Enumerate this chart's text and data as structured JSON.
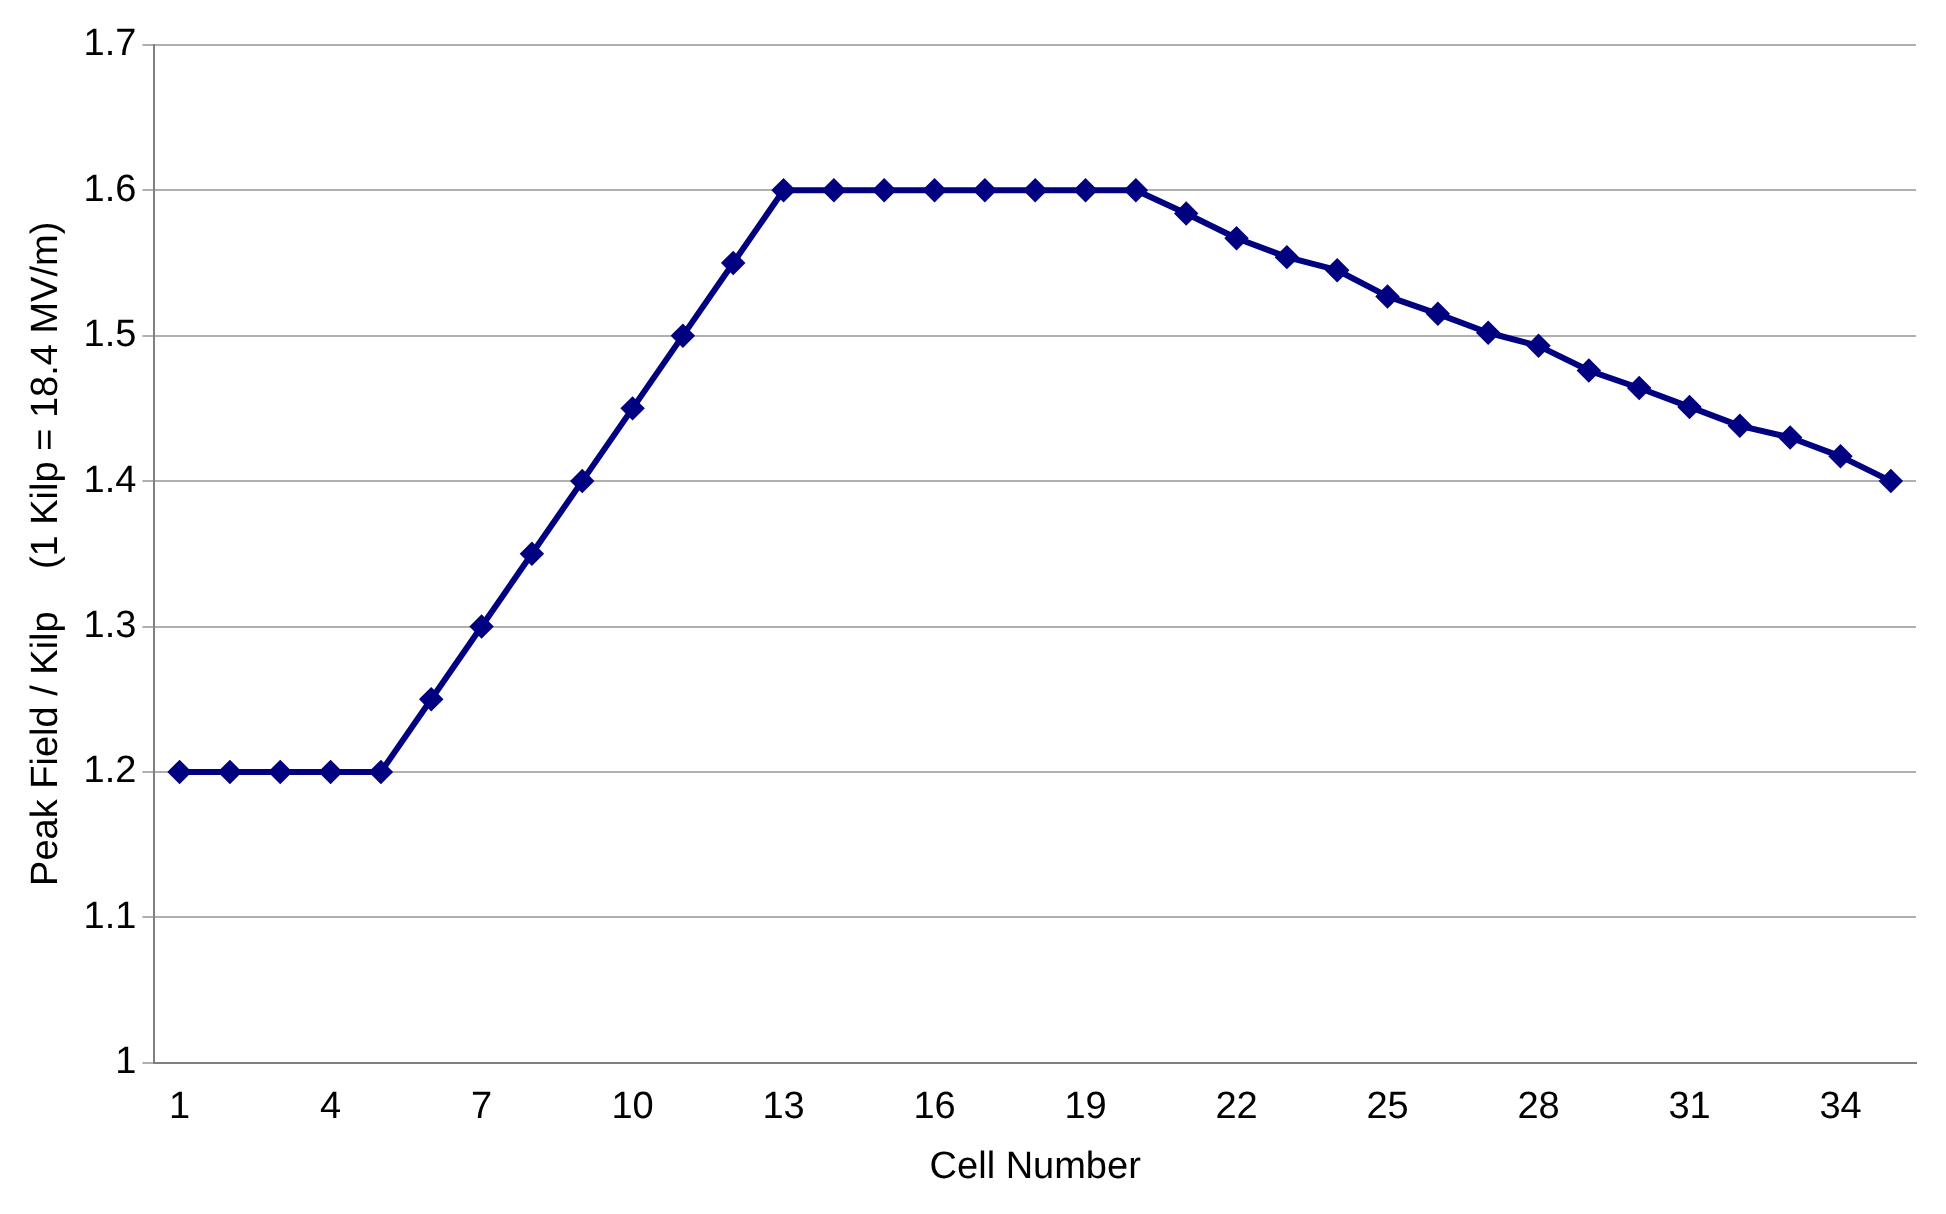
{
  "chart_data": {
    "type": "line",
    "xlabel": "Cell Number",
    "ylabel": "Peak Field / Kilp    (1 Kilp = 18.4 MV/m)",
    "categories": [
      "1",
      null,
      null,
      "4",
      null,
      null,
      "7",
      null,
      null,
      "10",
      null,
      null,
      "13",
      null,
      null,
      "16",
      null,
      null,
      "19",
      null,
      null,
      "22",
      null,
      null,
      "25",
      null,
      null,
      "28",
      null,
      null,
      "31",
      null,
      null,
      "34",
      null
    ],
    "series": [
      {
        "color": "#000080",
        "values": [
          1.2,
          1.2,
          1.2,
          1.2,
          1.2,
          1.25,
          1.3,
          1.35,
          1.4,
          1.45,
          1.5,
          1.55,
          1.6,
          1.6,
          1.6,
          1.6,
          1.6,
          1.6,
          1.6,
          1.6,
          1.584,
          1.567,
          1.554,
          1.545,
          1.527,
          1.515,
          1.502,
          1.493,
          1.476,
          1.464,
          1.451,
          1.438,
          1.43,
          1.417,
          1.4
        ]
      }
    ],
    "ylim": [
      1,
      1.7
    ],
    "yticks": [
      1,
      1.1,
      1.2,
      1.3,
      1.4,
      1.5,
      1.6,
      1.7
    ],
    "grid": "y",
    "legend": false,
    "marker": "diamond",
    "line_style": "solid"
  }
}
